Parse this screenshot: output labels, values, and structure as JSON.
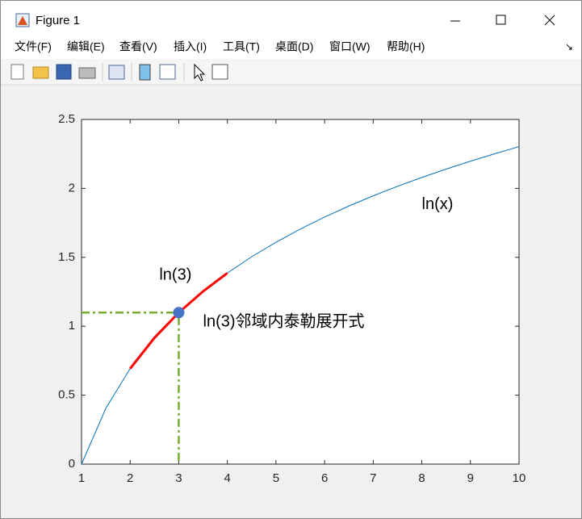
{
  "window": {
    "title": "Figure 1",
    "menu": [
      "文件(F)",
      "编辑(E)",
      "查看(V)",
      "插入(I)",
      "工具(T)",
      "桌面(D)",
      "窗口(W)",
      "帮助(H)"
    ]
  },
  "chart_data": {
    "type": "line",
    "xlim": [
      1,
      10
    ],
    "ylim": [
      0,
      2.5
    ],
    "xticks": [
      1,
      2,
      3,
      4,
      5,
      6,
      7,
      8,
      9,
      10
    ],
    "yticks": [
      0,
      0.5,
      1,
      1.5,
      2,
      2.5
    ],
    "series": [
      {
        "color": "#0072bd",
        "line_style": "solid",
        "x": [
          1,
          1.5,
          2,
          2.5,
          3,
          3.5,
          4,
          4.5,
          5,
          5.5,
          6,
          6.5,
          7,
          7.5,
          8,
          8.5,
          9,
          9.5,
          10
        ],
        "values": [
          0,
          0.405,
          0.693,
          0.916,
          1.099,
          1.253,
          1.386,
          1.504,
          1.609,
          1.705,
          1.792,
          1.872,
          1.946,
          2.015,
          2.079,
          2.14,
          2.197,
          2.251,
          2.303
        ]
      },
      {
        "color": "#ff0000",
        "line_style": "thick",
        "x": [
          2,
          2.5,
          3,
          3.5,
          4
        ],
        "values": [
          0.693,
          0.916,
          1.099,
          1.253,
          1.386
        ]
      },
      {
        "color": "#77ac30",
        "line_style": "dashdot",
        "x": [
          1,
          3,
          3
        ],
        "values": [
          1.099,
          1.099,
          0
        ]
      },
      {
        "color": "#4472c4",
        "line_style": "none",
        "marker": "circle",
        "x": [
          3
        ],
        "values": [
          1.099
        ]
      }
    ],
    "annotations": [
      {
        "text": "ln(x)",
        "x": 8,
        "y": 1.88
      },
      {
        "text": "ln(3)",
        "x": 2.6,
        "y": 1.37
      },
      {
        "text": "ln(3)邻域内泰勒展开式",
        "x": 3.5,
        "y": 1.03
      }
    ]
  }
}
